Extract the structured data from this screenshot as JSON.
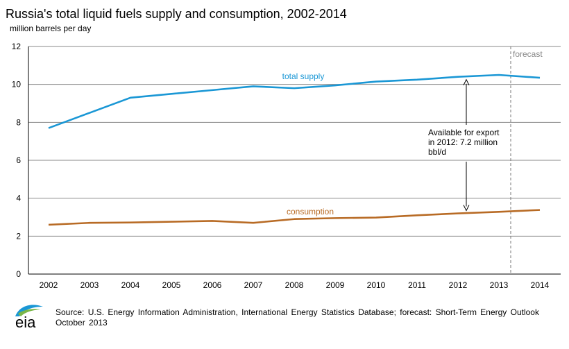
{
  "chart_data": {
    "type": "line",
    "title": "Russia's total liquid fuels supply and consumption, 2002-2014",
    "units_label": "million barrels  per day",
    "x": [
      2002,
      2003,
      2004,
      2005,
      2006,
      2007,
      2008,
      2009,
      2010,
      2011,
      2012,
      2013,
      2014
    ],
    "ylim": [
      0,
      12
    ],
    "yticks": [
      0,
      2,
      4,
      6,
      8,
      10,
      12
    ],
    "grid": true,
    "series": [
      {
        "name": "total supply",
        "color": "#1a97d5",
        "values": [
          7.7,
          8.5,
          9.3,
          9.5,
          9.7,
          9.9,
          9.8,
          9.95,
          10.15,
          10.25,
          10.4,
          10.5,
          10.35
        ]
      },
      {
        "name": "consumption",
        "color": "#b86b25",
        "values": [
          2.6,
          2.7,
          2.72,
          2.76,
          2.8,
          2.7,
          2.9,
          2.95,
          2.98,
          3.1,
          3.2,
          3.28,
          3.38
        ]
      }
    ],
    "forecast_label": "forecast",
    "annotation": [
      "Available  for export",
      "in 2012: 7.2 million",
      "bbl/d"
    ]
  },
  "footer": {
    "logo_text": "eia",
    "source": "Source: U.S. Energy Information  Administration, International  Energy Statistics Database;  forecast: Short-Term Energy Outlook October 2013"
  }
}
